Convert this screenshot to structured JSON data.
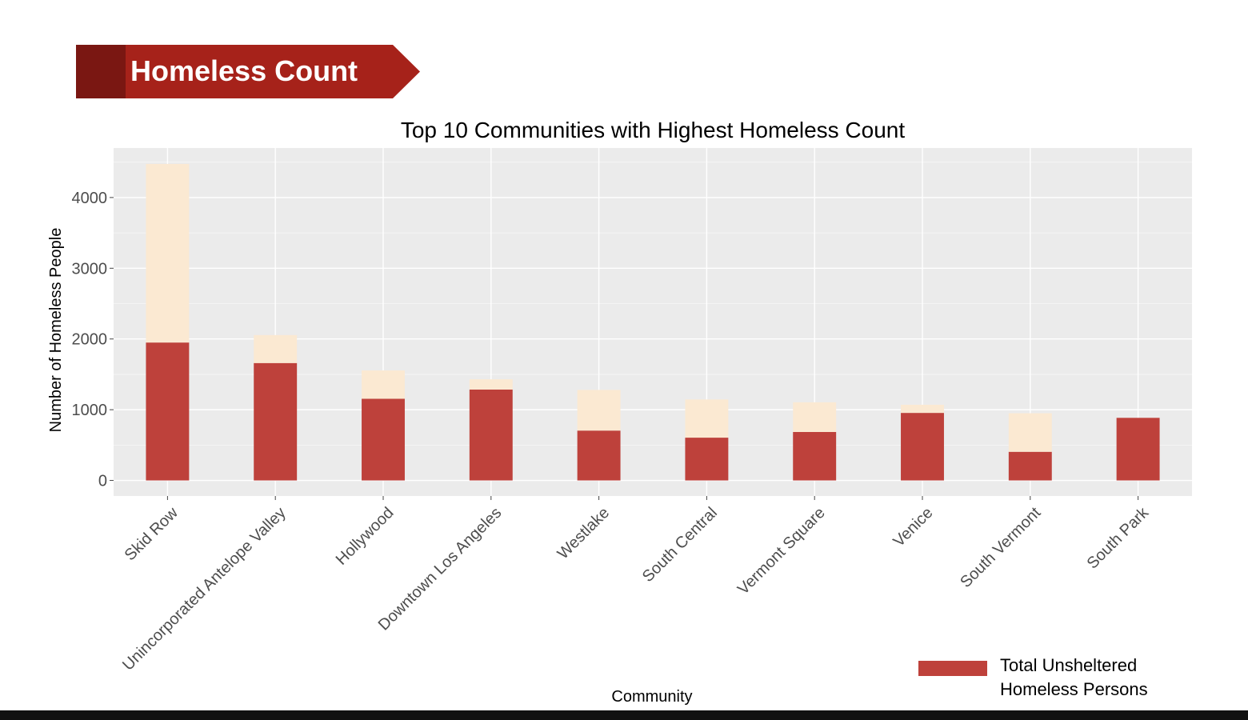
{
  "slide": {
    "banner_title": "Homeless Count"
  },
  "colors": {
    "banner_dark": "#7a1712",
    "banner_main": "#a6221a",
    "panel_bg": "#ebebeb",
    "grid": "#ffffff",
    "unsheltered": "#be413b",
    "sheltered_remainder": "#fbe9d2"
  },
  "chart_data": {
    "type": "bar",
    "stacked": true,
    "title": "Top 10 Communities with Highest Homeless Count",
    "xlabel": "Community",
    "ylabel": "Number of Homeless People",
    "ylim": [
      -220,
      4700
    ],
    "yticks": [
      0,
      1000,
      2000,
      3000,
      4000
    ],
    "grid": true,
    "legend_position": "bottom-right",
    "categories": [
      "Skid Row",
      "Unincorporated Antelope Valley",
      "Hollywood",
      "Downtown Los Angeles",
      "Westlake",
      "South Central",
      "Vermont Square",
      "Venice",
      "South Vermont",
      "South Park"
    ],
    "series": [
      {
        "name": "Total Unsheltered Homeless Persons",
        "color": "#be413b",
        "values": [
          1950,
          1660,
          1155,
          1285,
          705,
          605,
          685,
          955,
          405,
          885
        ]
      },
      {
        "color": "#fbe9d2",
        "values": [
          2525,
          395,
          400,
          145,
          575,
          540,
          420,
          115,
          545,
          0
        ]
      }
    ]
  }
}
